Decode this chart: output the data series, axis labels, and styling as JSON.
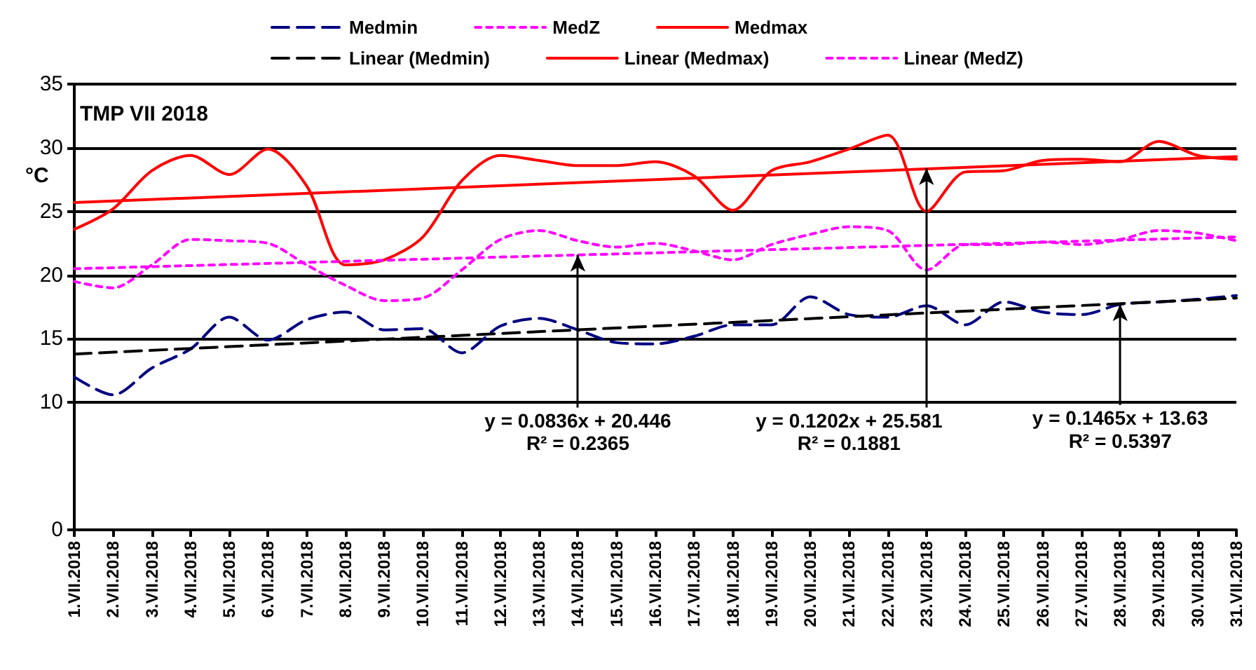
{
  "chart_data": {
    "type": "line",
    "title": "TMP VII 2018",
    "ylabel": "°C",
    "categories": [
      "1.VII.2018",
      "2.VII.2018",
      "3.VII.2018",
      "4.VII.2018",
      "5.VII.2018",
      "6.VII.2018",
      "7.VII.2018",
      "8.VII.2018",
      "9.VII.2018",
      "10.VII.2018",
      "11.VII.2018",
      "12.VII.2018",
      "13.VII.2018",
      "14.VII.2018",
      "15.VII.2018",
      "16.VII.2018",
      "17.VII.2018",
      "18.VII.2018",
      "19.VII.2018",
      "20.VII.2018",
      "21.VII.2018",
      "22.VII.2018",
      "23.VII.2018",
      "24.VII.2018",
      "25.VII.2018",
      "26.VII.2018",
      "27.VII.2018",
      "28.VII.2018",
      "29.VII.2018",
      "30.VII.2018",
      "31.VII.2018"
    ],
    "series": [
      {
        "name": "Medmin",
        "color": "#000080",
        "line_style": "dashed",
        "values": [
          12.0,
          10.6,
          12.7,
          14.2,
          16.7,
          14.9,
          16.5,
          17.1,
          15.7,
          15.8,
          13.9,
          16.0,
          16.6,
          15.7,
          14.7,
          14.6,
          15.2,
          16.1,
          16.1,
          18.3,
          16.9,
          16.7,
          17.6,
          16.1,
          17.9,
          17.1,
          16.9,
          17.7,
          17.9,
          18.1,
          18.4
        ]
      },
      {
        "name": "MedZ",
        "color": "#ff00ff",
        "line_style": "dotted",
        "values": [
          19.5,
          19.0,
          20.8,
          22.8,
          22.7,
          22.5,
          20.8,
          19.2,
          18.0,
          18.2,
          20.4,
          22.8,
          23.5,
          22.7,
          22.2,
          22.5,
          21.9,
          21.2,
          22.4,
          23.2,
          23.8,
          23.5,
          20.4,
          22.4,
          22.4,
          22.6,
          22.4,
          22.8,
          23.5,
          23.3,
          22.7
        ]
      },
      {
        "name": "Medmax",
        "color": "#ff0000",
        "line_style": "solid",
        "values": [
          23.6,
          25.2,
          28.2,
          29.4,
          27.9,
          29.9,
          27.0,
          20.8,
          21.2,
          23.0,
          27.4,
          29.4,
          29.0,
          28.6,
          28.6,
          28.9,
          27.8,
          25.1,
          28.2,
          28.9,
          29.9,
          31.0,
          25.0,
          28.1,
          28.2,
          29.0,
          29.1,
          28.9,
          30.5,
          29.4,
          29.1
        ]
      },
      {
        "name": "Linear (Medmin)",
        "color": "#000000",
        "line_style": "dashed",
        "x": [
          "1.VII.2018",
          "31.VII.2018"
        ],
        "values": [
          13.8,
          18.2
        ]
      },
      {
        "name": "Linear (Medmax)",
        "color": "#ff0000",
        "line_style": "solid",
        "x": [
          "1.VII.2018",
          "31.VII.2018"
        ],
        "values": [
          25.7,
          29.3
        ]
      },
      {
        "name": "Linear (MedZ)",
        "color": "#ff00ff",
        "line_style": "dotted",
        "x": [
          "1.VII.2018",
          "31.VII.2018"
        ],
        "values": [
          20.5,
          23.0
        ]
      }
    ],
    "ylim": [
      0,
      35
    ],
    "yticks": [
      0,
      10,
      15,
      20,
      25,
      30,
      35
    ],
    "grid": "y",
    "legend": "top",
    "marker": "none",
    "annotations": [
      {
        "text": "y = 0.0836x + 20.446",
        "x": "14.VII.2018",
        "y": 21.6
      },
      "R² = 0.2365",
      {
        "text": "y = 0.1202x + 25.581",
        "x": "23.VII.2018",
        "y": 28.4
      },
      "R² = 0.1881",
      {
        "text": "y = 0.1465x + 13.63",
        "x": "28.VII.2018",
        "y": 17.7
      },
      "R² = 0.5397"
    ]
  }
}
